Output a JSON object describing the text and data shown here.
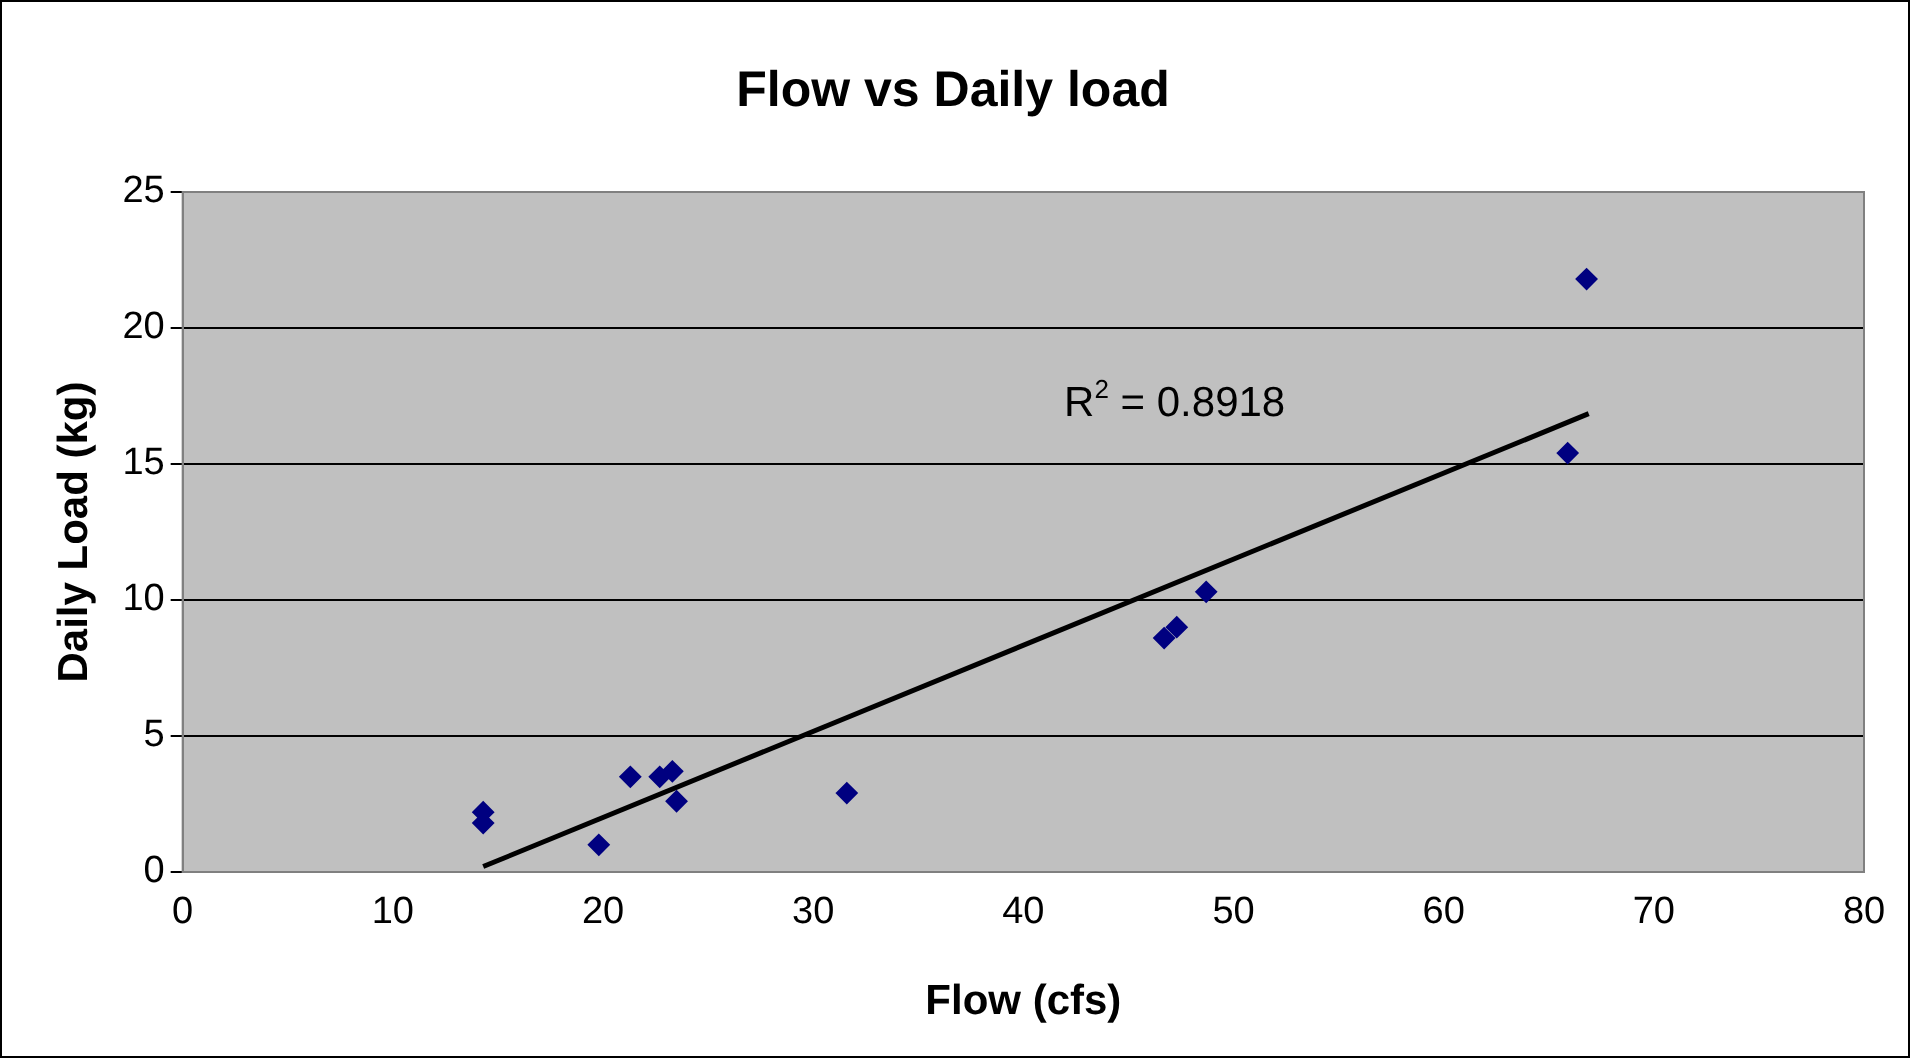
{
  "chart_data": {
    "type": "scatter",
    "title": "Flow vs Daily load",
    "xlabel": "Flow (cfs)",
    "ylabel": "Daily Load (kg)",
    "xlim": [
      0,
      80
    ],
    "xticks": [
      0,
      10,
      20,
      30,
      40,
      50,
      60,
      70,
      80
    ],
    "ylim": [
      0,
      25
    ],
    "yticks": [
      0,
      5,
      10,
      15,
      20,
      25
    ],
    "grid": "y",
    "legend": false,
    "marker": "diamond",
    "series": [
      {
        "color": "#000080",
        "x": [
          14.3,
          14.3,
          19.8,
          21.3,
          22.7,
          23.3,
          23.5,
          31.6,
          46.7,
          47.3,
          48.7,
          65.9,
          66.8
        ],
        "values": [
          2.2,
          1.8,
          1.0,
          3.5,
          3.5,
          3.7,
          2.6,
          2.9,
          8.6,
          9.0,
          10.3,
          15.4,
          21.8
        ]
      },
      {
        "type": "line",
        "color": "#000000",
        "x": [
          14.3,
          66.9
        ],
        "values": [
          0.2,
          16.85
        ],
        "marker": "none"
      }
    ],
    "annotations": [
      "R$^{2}$ = 0.8918"
    ]
  }
}
